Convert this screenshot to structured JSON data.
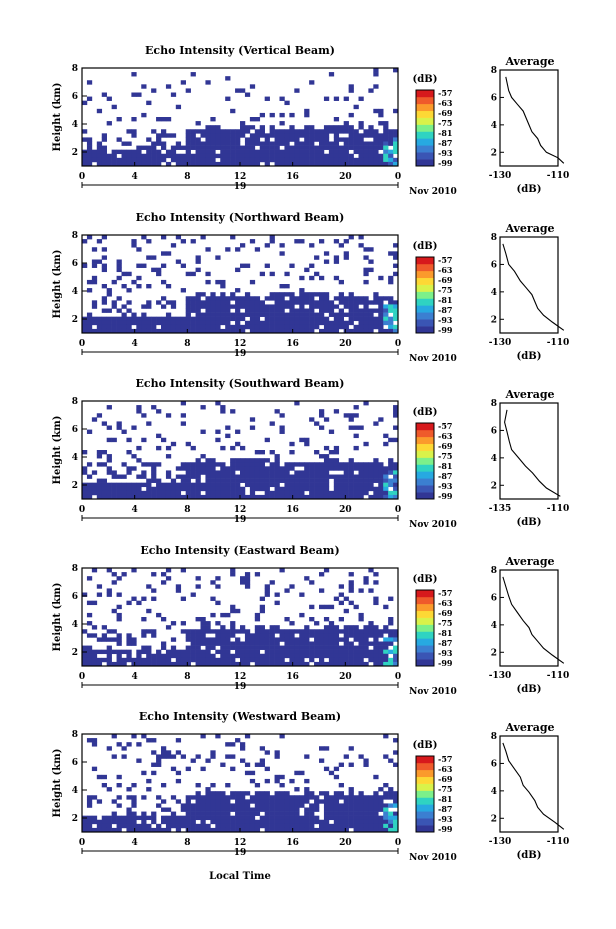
{
  "colorbar": {
    "unit": "(dB)",
    "ticks": [
      "-57",
      "-63",
      "-69",
      "-75",
      "-81",
      "-87",
      "-93",
      "-99"
    ],
    "colors": [
      "#313695",
      "#3a55b4",
      "#3b7fd1",
      "#27a9e1",
      "#2fd3c2",
      "#7cf08a",
      "#d9f24a",
      "#fdd835",
      "#fb9a2c",
      "#ef5a2b",
      "#d7191c"
    ]
  },
  "x_axis": {
    "ticks": [
      "0",
      "4",
      "8",
      "12",
      "16",
      "20",
      "0"
    ],
    "day_label": "19",
    "month_label": "Nov 2010",
    "label": "Local Time"
  },
  "y_axis": {
    "label": "Height (km)",
    "ticks": [
      "2",
      "4",
      "6",
      "8"
    ]
  },
  "profile": {
    "title": "Average",
    "xlabel": "(dB)",
    "yticks": [
      "2",
      "4",
      "6",
      "8"
    ]
  },
  "panels": [
    {
      "title": "Echo Intensity (Vertical Beam)",
      "profile_xticks": [
        "-130",
        "-110"
      ],
      "profile_xlim": [
        -130,
        -110
      ]
    },
    {
      "title": "Echo Intensity (Northward Beam)",
      "profile_xticks": [
        "-130",
        "-110"
      ],
      "profile_xlim": [
        -130,
        -110
      ]
    },
    {
      "title": "Echo Intensity (Southward Beam)",
      "profile_xticks": [
        "-135",
        "-110"
      ],
      "profile_xlim": [
        -135,
        -110
      ]
    },
    {
      "title": "Echo Intensity (Eastward Beam)",
      "profile_xticks": [
        "-130",
        "-110"
      ],
      "profile_xlim": [
        -130,
        -110
      ]
    },
    {
      "title": "Echo Intensity (Westward Beam)",
      "profile_xticks": [
        "-130",
        "-110"
      ],
      "profile_xlim": [
        -130,
        -110
      ]
    }
  ],
  "chart_data": {
    "type": "heatmap",
    "x_range_hours": [
      0,
      24
    ],
    "y_range_km": [
      1,
      8
    ],
    "colorbar_range_db": [
      -99,
      -57
    ],
    "profiles": [
      {
        "type": "line",
        "title": "Average",
        "xlim": [
          -130,
          -110
        ],
        "ylim": [
          1,
          8
        ],
        "x": [
          -108,
          -110,
          -114,
          -116,
          -117,
          -119,
          -120,
          -121,
          -122,
          -124,
          -126,
          -127,
          -128
        ],
        "y": [
          1.2,
          1.6,
          2.0,
          2.5,
          3.0,
          3.5,
          4.0,
          4.5,
          5.0,
          5.5,
          6.0,
          6.5,
          7.5
        ]
      },
      {
        "type": "line",
        "title": "Average",
        "xlim": [
          -130,
          -110
        ],
        "ylim": [
          1,
          8
        ],
        "x": [
          -108,
          -112,
          -115,
          -117,
          -118,
          -119,
          -121,
          -123,
          -125,
          -127,
          -128,
          -129
        ],
        "y": [
          1.2,
          1.8,
          2.3,
          2.8,
          3.3,
          3.8,
          4.3,
          4.8,
          5.5,
          6.0,
          6.8,
          7.5
        ]
      },
      {
        "type": "line",
        "title": "Average",
        "xlim": [
          -135,
          -110
        ],
        "ylim": [
          1,
          8
        ],
        "x": [
          -109,
          -115,
          -118,
          -121,
          -124,
          -127,
          -130,
          -131,
          -132,
          -133,
          -132
        ],
        "y": [
          1.2,
          1.8,
          2.3,
          2.9,
          3.4,
          4.0,
          4.6,
          5.2,
          5.9,
          6.6,
          7.5
        ]
      },
      {
        "type": "line",
        "title": "Average",
        "xlim": [
          -130,
          -110
        ],
        "ylim": [
          1,
          8
        ],
        "x": [
          -108,
          -112,
          -115,
          -117,
          -119,
          -120,
          -122,
          -124,
          -126,
          -127,
          -128,
          -129
        ],
        "y": [
          1.2,
          1.8,
          2.3,
          2.8,
          3.3,
          3.8,
          4.3,
          4.9,
          5.5,
          6.1,
          6.8,
          7.5
        ]
      },
      {
        "type": "line",
        "title": "Average",
        "xlim": [
          -130,
          -110
        ],
        "ylim": [
          1,
          8
        ],
        "x": [
          -108,
          -111,
          -115,
          -117,
          -118,
          -120,
          -122,
          -123,
          -125,
          -127,
          -128,
          -129
        ],
        "y": [
          1.2,
          1.7,
          2.3,
          2.8,
          3.3,
          3.9,
          4.4,
          5.0,
          5.6,
          6.2,
          6.9,
          7.5
        ]
      }
    ]
  }
}
